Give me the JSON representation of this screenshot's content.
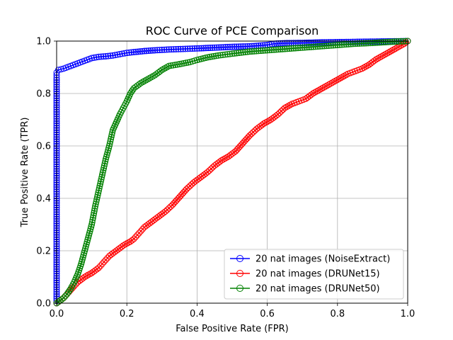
{
  "chart_data": {
    "type": "line",
    "title": "ROC Curve of PCE Comparison",
    "xlabel": "False Positive Rate (FPR)",
    "ylabel": "True Positive Rate (TPR)",
    "xlim": [
      0,
      1
    ],
    "ylim": [
      0,
      1
    ],
    "xticks": [
      "0.0",
      "0.2",
      "0.4",
      "0.6",
      "0.8",
      "1.0"
    ],
    "yticks": [
      "0.0",
      "0.2",
      "0.4",
      "0.6",
      "0.8",
      "1.0"
    ],
    "grid": true,
    "legend_position": "bottom-right",
    "series": [
      {
        "name": "20 nat images (NoiseExtract)",
        "color": "#0000ff",
        "marker": "circle-open",
        "points": [
          [
            0,
            0
          ],
          [
            0,
            0.86
          ],
          [
            0,
            0.88
          ],
          [
            0.005,
            0.89
          ],
          [
            0.02,
            0.895
          ],
          [
            0.04,
            0.905
          ],
          [
            0.06,
            0.915
          ],
          [
            0.08,
            0.925
          ],
          [
            0.1,
            0.935
          ],
          [
            0.12,
            0.94
          ],
          [
            0.14,
            0.942
          ],
          [
            0.16,
            0.945
          ],
          [
            0.18,
            0.95
          ],
          [
            0.2,
            0.955
          ],
          [
            0.22,
            0.958
          ],
          [
            0.25,
            0.962
          ],
          [
            0.28,
            0.965
          ],
          [
            0.32,
            0.968
          ],
          [
            0.36,
            0.97
          ],
          [
            0.4,
            0.972
          ],
          [
            0.45,
            0.975
          ],
          [
            0.5,
            0.978
          ],
          [
            0.55,
            0.98
          ],
          [
            0.6,
            0.985
          ],
          [
            0.62,
            0.99
          ],
          [
            0.65,
            0.992
          ],
          [
            0.7,
            0.993
          ],
          [
            0.75,
            0.995
          ],
          [
            0.8,
            0.996
          ],
          [
            0.85,
            0.997
          ],
          [
            0.9,
            0.998
          ],
          [
            0.95,
            0.999
          ],
          [
            1.0,
            1.0
          ]
        ]
      },
      {
        "name": "20 nat images (DRUNet15)",
        "color": "#ff0000",
        "marker": "circle-open",
        "points": [
          [
            0,
            0
          ],
          [
            0.01,
            0.01
          ],
          [
            0.02,
            0.02
          ],
          [
            0.03,
            0.035
          ],
          [
            0.04,
            0.05
          ],
          [
            0.05,
            0.065
          ],
          [
            0.06,
            0.08
          ],
          [
            0.07,
            0.09
          ],
          [
            0.08,
            0.1
          ],
          [
            0.09,
            0.108
          ],
          [
            0.1,
            0.115
          ],
          [
            0.11,
            0.125
          ],
          [
            0.12,
            0.135
          ],
          [
            0.13,
            0.15
          ],
          [
            0.14,
            0.165
          ],
          [
            0.15,
            0.18
          ],
          [
            0.16,
            0.19
          ],
          [
            0.17,
            0.2
          ],
          [
            0.18,
            0.21
          ],
          [
            0.19,
            0.22
          ],
          [
            0.2,
            0.228
          ],
          [
            0.21,
            0.235
          ],
          [
            0.22,
            0.245
          ],
          [
            0.23,
            0.26
          ],
          [
            0.24,
            0.275
          ],
          [
            0.25,
            0.29
          ],
          [
            0.27,
            0.31
          ],
          [
            0.29,
            0.33
          ],
          [
            0.31,
            0.35
          ],
          [
            0.33,
            0.375
          ],
          [
            0.35,
            0.405
          ],
          [
            0.37,
            0.435
          ],
          [
            0.39,
            0.46
          ],
          [
            0.41,
            0.48
          ],
          [
            0.43,
            0.5
          ],
          [
            0.45,
            0.525
          ],
          [
            0.47,
            0.545
          ],
          [
            0.49,
            0.56
          ],
          [
            0.51,
            0.58
          ],
          [
            0.53,
            0.61
          ],
          [
            0.55,
            0.64
          ],
          [
            0.57,
            0.665
          ],
          [
            0.59,
            0.685
          ],
          [
            0.61,
            0.7
          ],
          [
            0.63,
            0.72
          ],
          [
            0.65,
            0.745
          ],
          [
            0.67,
            0.76
          ],
          [
            0.69,
            0.77
          ],
          [
            0.71,
            0.78
          ],
          [
            0.73,
            0.8
          ],
          [
            0.75,
            0.815
          ],
          [
            0.77,
            0.83
          ],
          [
            0.79,
            0.845
          ],
          [
            0.81,
            0.86
          ],
          [
            0.83,
            0.875
          ],
          [
            0.85,
            0.885
          ],
          [
            0.87,
            0.895
          ],
          [
            0.89,
            0.91
          ],
          [
            0.91,
            0.93
          ],
          [
            0.93,
            0.945
          ],
          [
            0.95,
            0.96
          ],
          [
            0.97,
            0.975
          ],
          [
            0.99,
            0.99
          ],
          [
            1.0,
            1.0
          ]
        ]
      },
      {
        "name": "20 nat images (DRUNet50)",
        "color": "#008000",
        "marker": "circle-open",
        "points": [
          [
            0,
            0
          ],
          [
            0.005,
            0.005
          ],
          [
            0.01,
            0.01
          ],
          [
            0.02,
            0.02
          ],
          [
            0.03,
            0.035
          ],
          [
            0.04,
            0.055
          ],
          [
            0.05,
            0.08
          ],
          [
            0.06,
            0.11
          ],
          [
            0.07,
            0.15
          ],
          [
            0.08,
            0.2
          ],
          [
            0.09,
            0.25
          ],
          [
            0.1,
            0.3
          ],
          [
            0.11,
            0.37
          ],
          [
            0.12,
            0.43
          ],
          [
            0.13,
            0.49
          ],
          [
            0.14,
            0.55
          ],
          [
            0.15,
            0.6
          ],
          [
            0.16,
            0.66
          ],
          [
            0.17,
            0.69
          ],
          [
            0.18,
            0.72
          ],
          [
            0.19,
            0.745
          ],
          [
            0.2,
            0.77
          ],
          [
            0.21,
            0.8
          ],
          [
            0.22,
            0.82
          ],
          [
            0.24,
            0.84
          ],
          [
            0.26,
            0.855
          ],
          [
            0.28,
            0.87
          ],
          [
            0.3,
            0.89
          ],
          [
            0.32,
            0.905
          ],
          [
            0.35,
            0.912
          ],
          [
            0.38,
            0.92
          ],
          [
            0.4,
            0.928
          ],
          [
            0.43,
            0.938
          ],
          [
            0.46,
            0.945
          ],
          [
            0.5,
            0.952
          ],
          [
            0.55,
            0.96
          ],
          [
            0.6,
            0.965
          ],
          [
            0.65,
            0.97
          ],
          [
            0.7,
            0.975
          ],
          [
            0.75,
            0.98
          ],
          [
            0.8,
            0.985
          ],
          [
            0.85,
            0.99
          ],
          [
            0.9,
            0.993
          ],
          [
            0.95,
            0.997
          ],
          [
            0.98,
            0.999
          ],
          [
            1.0,
            1.0
          ]
        ]
      }
    ]
  }
}
